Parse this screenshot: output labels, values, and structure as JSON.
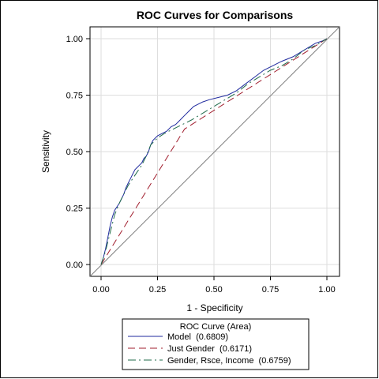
{
  "chart_data": {
    "type": "line",
    "title": "ROC Curves for Comparisons",
    "xlabel": "1 - Specificity",
    "ylabel": "Sensitivity",
    "xlim": [
      0,
      1
    ],
    "ylim": [
      0,
      1
    ],
    "xticks": [
      "0.00",
      "0.25",
      "0.50",
      "0.75",
      "1.00"
    ],
    "yticks": [
      "0.00",
      "0.25",
      "0.50",
      "0.75",
      "1.00"
    ],
    "grid": true,
    "legend": {
      "title": "ROC Curve (Area)",
      "placement": "bottom"
    },
    "series": [
      {
        "name": "Model  (0.6809)",
        "color": "#1f2a9e",
        "style": "solid",
        "points": [
          [
            0,
            0
          ],
          [
            0.01,
            0.03
          ],
          [
            0.02,
            0.07
          ],
          [
            0.03,
            0.12
          ],
          [
            0.04,
            0.17
          ],
          [
            0.05,
            0.21
          ],
          [
            0.06,
            0.24
          ],
          [
            0.08,
            0.27
          ],
          [
            0.09,
            0.29
          ],
          [
            0.1,
            0.31
          ],
          [
            0.11,
            0.34
          ],
          [
            0.12,
            0.36
          ],
          [
            0.13,
            0.38
          ],
          [
            0.14,
            0.4
          ],
          [
            0.15,
            0.42
          ],
          [
            0.16,
            0.43
          ],
          [
            0.17,
            0.44
          ],
          [
            0.18,
            0.45
          ],
          [
            0.19,
            0.47
          ],
          [
            0.2,
            0.48
          ],
          [
            0.21,
            0.5
          ],
          [
            0.22,
            0.53
          ],
          [
            0.23,
            0.55
          ],
          [
            0.25,
            0.57
          ],
          [
            0.27,
            0.58
          ],
          [
            0.29,
            0.59
          ],
          [
            0.31,
            0.61
          ],
          [
            0.33,
            0.62
          ],
          [
            0.35,
            0.64
          ],
          [
            0.37,
            0.66
          ],
          [
            0.39,
            0.68
          ],
          [
            0.41,
            0.7
          ],
          [
            0.43,
            0.71
          ],
          [
            0.45,
            0.72
          ],
          [
            0.48,
            0.73
          ],
          [
            0.52,
            0.74
          ],
          [
            0.56,
            0.75
          ],
          [
            0.6,
            0.77
          ],
          [
            0.64,
            0.8
          ],
          [
            0.68,
            0.83
          ],
          [
            0.72,
            0.86
          ],
          [
            0.76,
            0.88
          ],
          [
            0.8,
            0.9
          ],
          [
            0.85,
            0.92
          ],
          [
            0.9,
            0.95
          ],
          [
            0.95,
            0.98
          ],
          [
            0.98,
            0.99
          ],
          [
            1,
            1
          ]
        ]
      },
      {
        "name": "Just Gender  (0.6171)",
        "color": "#a01c2c",
        "style": "dashed",
        "points": [
          [
            0,
            0
          ],
          [
            0.37,
            0.6
          ],
          [
            1,
            1
          ]
        ]
      },
      {
        "name": "Gender, Rsce, Income  (0.6759)",
        "color": "#1f6b4a",
        "style": "dashdot",
        "points": [
          [
            0,
            0
          ],
          [
            0.02,
            0.06
          ],
          [
            0.04,
            0.14
          ],
          [
            0.06,
            0.22
          ],
          [
            0.08,
            0.27
          ],
          [
            0.1,
            0.31
          ],
          [
            0.12,
            0.35
          ],
          [
            0.14,
            0.38
          ],
          [
            0.16,
            0.41
          ],
          [
            0.18,
            0.44
          ],
          [
            0.2,
            0.48
          ],
          [
            0.22,
            0.53
          ],
          [
            0.25,
            0.56
          ],
          [
            0.28,
            0.58
          ],
          [
            0.32,
            0.6
          ],
          [
            0.36,
            0.62
          ],
          [
            0.4,
            0.64
          ],
          [
            0.45,
            0.67
          ],
          [
            0.5,
            0.7
          ],
          [
            0.55,
            0.73
          ],
          [
            0.6,
            0.76
          ],
          [
            0.65,
            0.8
          ],
          [
            0.7,
            0.83
          ],
          [
            0.75,
            0.86
          ],
          [
            0.8,
            0.88
          ],
          [
            0.85,
            0.91
          ],
          [
            0.9,
            0.95
          ],
          [
            0.95,
            0.97
          ],
          [
            1,
            1
          ]
        ]
      }
    ],
    "reference_line": {
      "color": "#808080",
      "points": [
        [
          0,
          0
        ],
        [
          1,
          1
        ]
      ]
    }
  }
}
